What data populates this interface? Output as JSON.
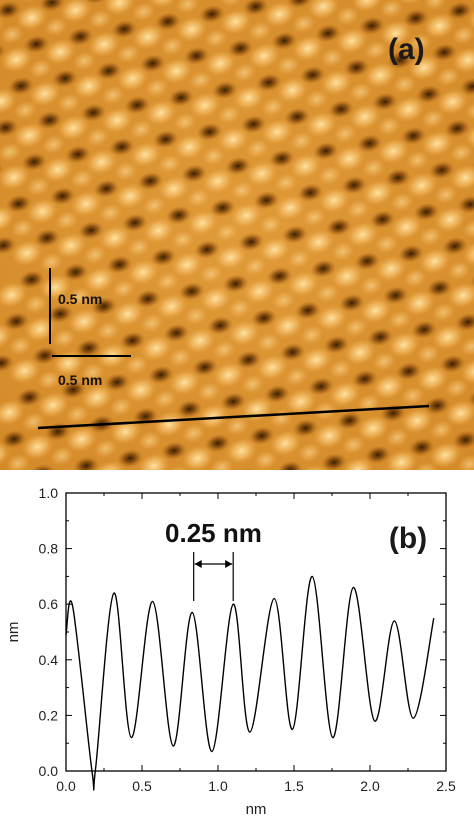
{
  "panel_a": {
    "label": "(a)",
    "scale_vertical_label": "0.5 nm",
    "scale_horizontal_label": "0.5 nm",
    "colors": {
      "dark": "#3a1f00",
      "mid": "#d48a28",
      "bright": "#ffe2a0",
      "line": "#000000"
    }
  },
  "chart_data": {
    "type": "line",
    "panel_label": "(b)",
    "xlabel": "nm",
    "ylabel": "nm",
    "xlim": [
      0.0,
      2.5
    ],
    "ylim": [
      0.0,
      1.0
    ],
    "xticks": [
      "0.0",
      "0.5",
      "1.0",
      "1.5",
      "2.0",
      "2.5"
    ],
    "yticks": [
      "0.0",
      "0.2",
      "0.4",
      "0.6",
      "0.8",
      "1.0"
    ],
    "annotation": {
      "text": "0.25 nm",
      "x_start": 0.84,
      "x_end": 1.1
    },
    "grid": false,
    "line_color": "#000000",
    "series": [
      {
        "x": [
          0.0,
          0.045,
          0.17,
          0.195,
          0.315,
          0.43,
          0.57,
          0.705,
          0.83,
          0.96,
          1.1,
          1.21,
          1.37,
          1.49,
          1.62,
          1.755,
          1.89,
          2.03,
          2.16,
          2.285,
          2.42
        ],
        "y": [
          0.49,
          0.59,
          0.005,
          0.01,
          0.64,
          0.12,
          0.61,
          0.09,
          0.57,
          0.07,
          0.6,
          0.14,
          0.62,
          0.15,
          0.7,
          0.12,
          0.66,
          0.18,
          0.54,
          0.19,
          0.55
        ]
      }
    ]
  }
}
